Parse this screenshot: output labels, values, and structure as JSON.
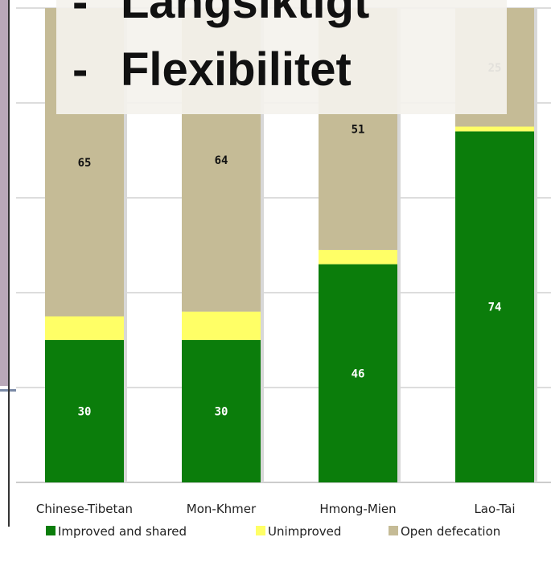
{
  "chart_data": {
    "type": "stacked_bar",
    "categories": [
      "Chinese-Tibetan",
      "Mon-Khmer",
      "Hmong-Mien",
      "Lao-Tai"
    ],
    "series": [
      {
        "name": "Improved and shared",
        "color": "#0b7d0b",
        "label_color": "#ffffff",
        "values": [
          30,
          30,
          46,
          74
        ]
      },
      {
        "name": "Unimproved",
        "color": "#ffff66",
        "values": [
          5,
          6,
          3,
          1
        ]
      },
      {
        "name": "Open defecation",
        "color": "#c5bb96",
        "label_color": "#111111",
        "values": [
          65,
          64,
          51,
          25
        ]
      }
    ],
    "ylim": [
      0,
      100
    ],
    "yticks": [
      0,
      20,
      40,
      60,
      80,
      100
    ],
    "grid": true
  },
  "overlay": {
    "marker": "-",
    "lines": [
      "Långsiktigt",
      "Flexibilitet"
    ]
  }
}
